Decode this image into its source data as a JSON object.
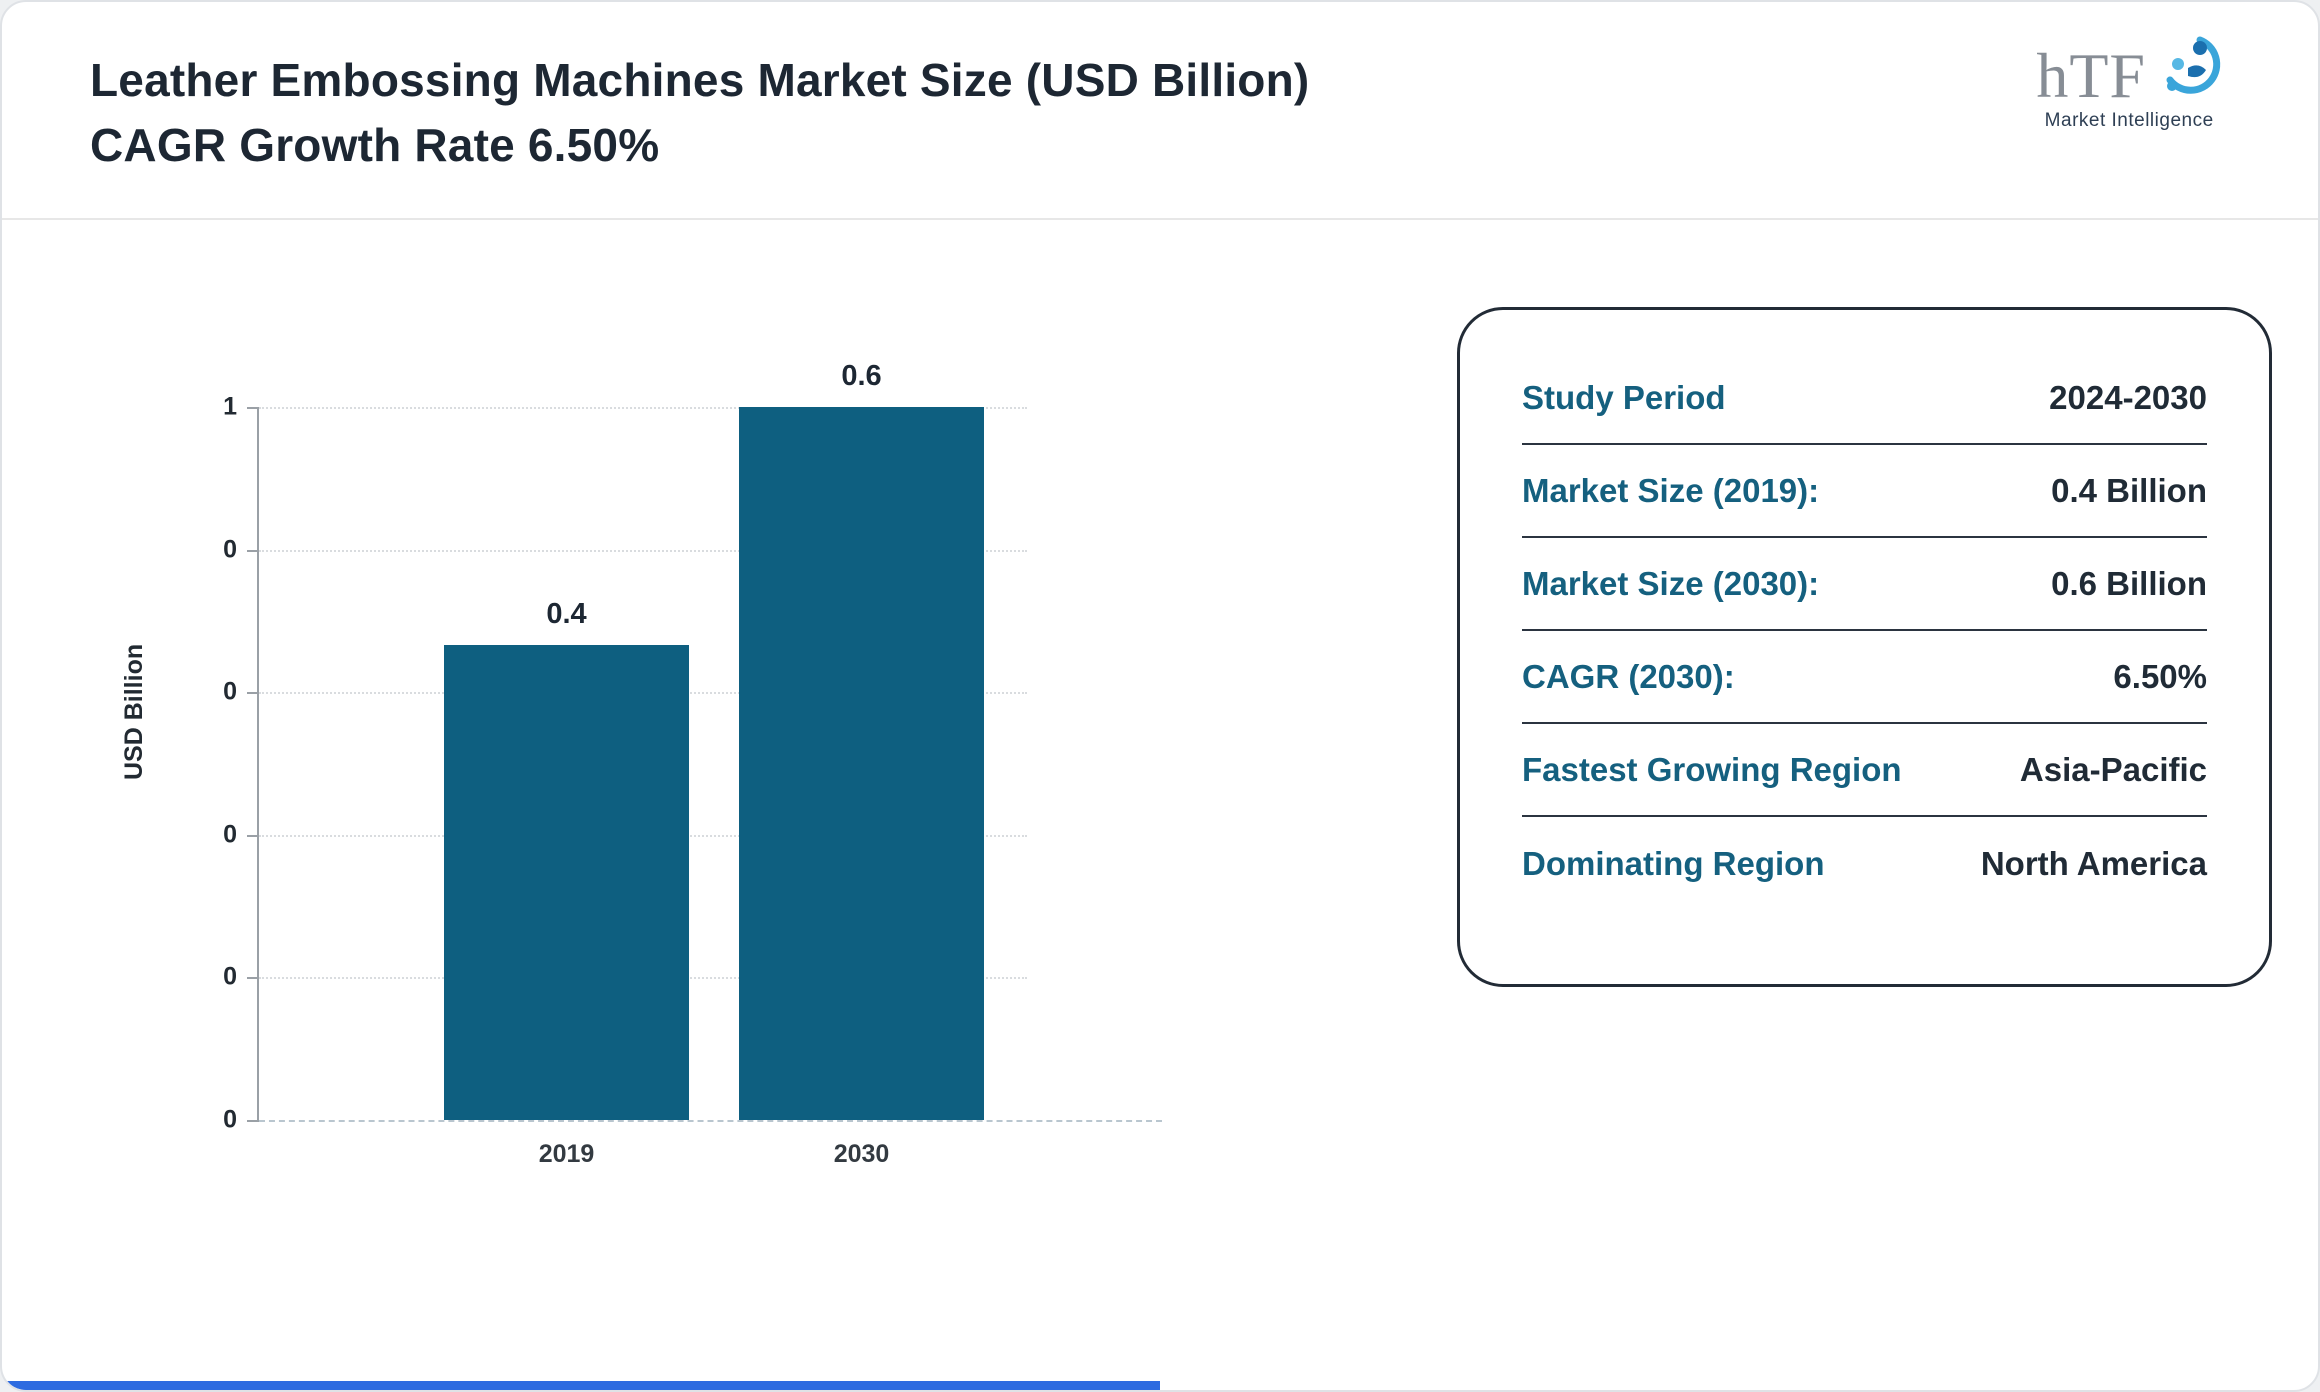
{
  "header": {
    "title": "Leather Embossing Machines Market Size (USD Billion) CAGR Growth Rate 6.50%",
    "logo": {
      "name": "hTF",
      "tagline": "Market Intelligence"
    }
  },
  "chart_data": {
    "type": "bar",
    "title": "Leather Embossing Machines Market Size (USD Billion) CAGR Growth Rate 6.50%",
    "categories": [
      "2019",
      "2030"
    ],
    "values": [
      0.4,
      0.6
    ],
    "value_labels": [
      "0.4",
      "0.6"
    ],
    "xlabel": "",
    "ylabel": "USD Billion",
    "ylim": [
      0,
      0.6
    ],
    "y_tick_labels_top_to_bottom": [
      "1",
      "0",
      "0",
      "0",
      "0",
      "0"
    ],
    "grid": "horizontal-dotted",
    "legend": "none",
    "bar_color": "#0e5f80"
  },
  "info_card": {
    "rows": [
      {
        "label": "Study Period",
        "value": "2024-2030"
      },
      {
        "label": "Market Size (2019):",
        "value": "0.4 Billion"
      },
      {
        "label": "Market Size (2030):",
        "value": "0.6 Billion"
      },
      {
        "label": "CAGR (2030):",
        "value": "6.50%"
      },
      {
        "label": "Fastest Growing Region",
        "value": "Asia-Pacific"
      },
      {
        "label": "Dominating Region",
        "value": "North America"
      }
    ]
  },
  "colors": {
    "bar": "#0e5f80",
    "label_teal": "#15607f",
    "value_navy": "#202b36",
    "title_navy": "#1d2733",
    "bottom_accent_blue": "#2e6be0"
  }
}
